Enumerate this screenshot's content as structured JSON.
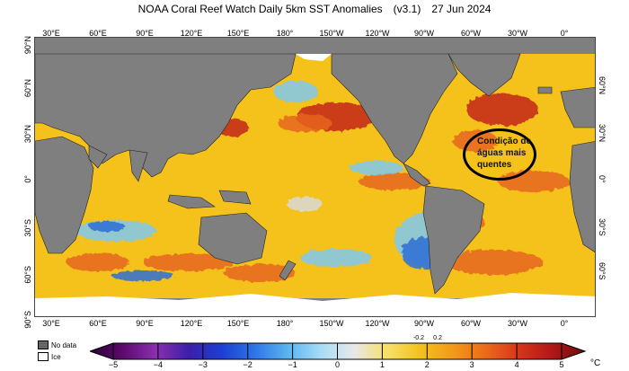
{
  "header": {
    "title": "NOAA Coral Reef Watch Daily 5km SST Anomalies",
    "version": "(v3.1)",
    "date": "27 Jun 2024"
  },
  "map": {
    "longitude_labels": [
      "30°E",
      "60°E",
      "90°E",
      "120°E",
      "150°E",
      "180°",
      "150°W",
      "120°W",
      "90°W",
      "60°W",
      "30°W",
      "0°"
    ],
    "latitude_labels_left": [
      "90°N",
      "60°N",
      "30°N",
      "0°",
      "30°S",
      "60°S",
      "90°S"
    ],
    "latitude_labels_right": [
      "60°N",
      "30°N",
      "0°",
      "30°S",
      "60°S"
    ],
    "annotation": "Condição de\náguas mais\nquentes",
    "colors": {
      "land": "#7f7f7f",
      "ice": "#ffffff",
      "ocean_base": "#f5c21b",
      "warm": "#e8661c",
      "hot": "#c3261b",
      "cool": "#7fc8ee",
      "cold": "#2f6fd6",
      "neutral": "#d9d9d9"
    }
  },
  "legend": {
    "no_data_label": "No data",
    "ice_label": "Ice",
    "no_data_color": "#666666",
    "ice_color": "#ffffff"
  },
  "colorbar": {
    "ticks": [
      "−5",
      "−4",
      "−3",
      "−2",
      "−1",
      "0",
      "1",
      "2",
      "3",
      "4",
      "5"
    ],
    "small_labels": [
      "-0.2",
      "0.2"
    ],
    "unit": "°C",
    "stops": [
      "#2b0033",
      "#5d0a6e",
      "#8a2fb0",
      "#3b1fa8",
      "#1c3fd1",
      "#2e76e5",
      "#59b4f0",
      "#a7dcf6",
      "#e8e8e8",
      "#f7e06a",
      "#f3c21b",
      "#f29a1a",
      "#ea6a1a",
      "#d83519",
      "#b01818",
      "#6e0c0c"
    ]
  }
}
